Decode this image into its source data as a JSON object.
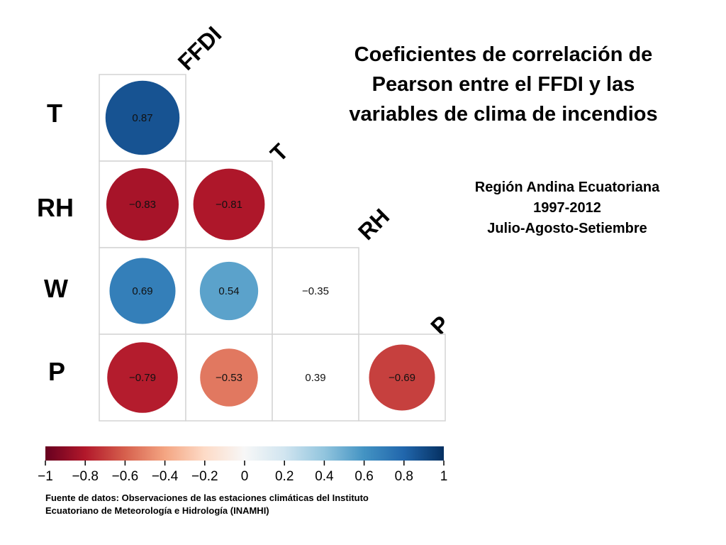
{
  "title_lines": [
    "Coeficientes de correlación de",
    "Pearson entre el FFDI y las",
    "variables de clima de incendios"
  ],
  "subtitle_lines": [
    "Región Andina Ecuatoriana",
    "1997-2012",
    "Julio-Agosto-Setiembre"
  ],
  "source_lines": [
    "Fuente de datos: Observaciones de las estaciones climáticas del Instituto",
    "Ecuatoriano de Meteorología e Hidrología (INAMHI)"
  ],
  "chart_data": {
    "type": "heatmap",
    "row_labels": [
      "T",
      "RH",
      "W",
      "P"
    ],
    "column_labels": [
      "FFDI",
      "T",
      "RH",
      "P"
    ],
    "cells": [
      {
        "row": "T",
        "col": "FFDI",
        "value": 0.87,
        "label": "0.87"
      },
      {
        "row": "RH",
        "col": "FFDI",
        "value": -0.83,
        "label": "−0.83"
      },
      {
        "row": "RH",
        "col": "T",
        "value": -0.81,
        "label": "−0.81"
      },
      {
        "row": "W",
        "col": "FFDI",
        "value": 0.69,
        "label": "0.69"
      },
      {
        "row": "W",
        "col": "T",
        "value": 0.54,
        "label": "0.54"
      },
      {
        "row": "W",
        "col": "RH",
        "value": -0.35,
        "label": "−0.35"
      },
      {
        "row": "P",
        "col": "FFDI",
        "value": -0.79,
        "label": "−0.79"
      },
      {
        "row": "P",
        "col": "T",
        "value": -0.53,
        "label": "−0.53"
      },
      {
        "row": "P",
        "col": "RH",
        "value": 0.39,
        "label": "0.39"
      },
      {
        "row": "P",
        "col": "P",
        "value": -0.69,
        "label": "−0.69"
      }
    ],
    "colorbar": {
      "range": [
        -1,
        1
      ],
      "ticks": [
        -1,
        -0.8,
        -0.6,
        -0.4,
        -0.2,
        0,
        0.2,
        0.4,
        0.6,
        0.8,
        1
      ],
      "tick_labels": [
        "−1",
        "−0.8",
        "−0.6",
        "−0.4",
        "−0.2",
        "0",
        "0.2",
        "0.4",
        "0.6",
        "0.8",
        "1"
      ],
      "colors": [
        "#67001f",
        "#b2182b",
        "#d6604d",
        "#f4a582",
        "#fddbc7",
        "#f7f7f7",
        "#d1e5f0",
        "#92c5de",
        "#4393c3",
        "#2166ac",
        "#053061"
      ]
    }
  }
}
